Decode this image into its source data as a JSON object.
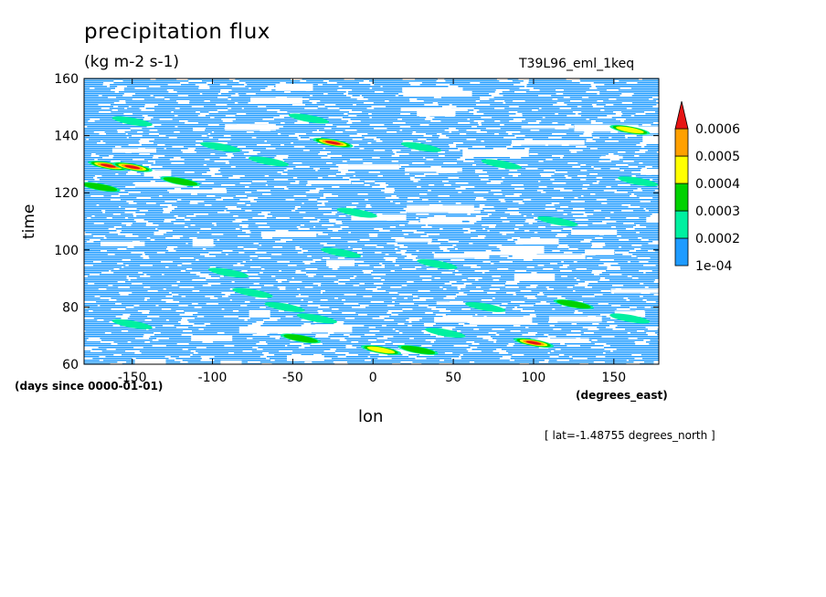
{
  "chart_data": {
    "type": "heatmap",
    "title": "precipitation flux",
    "units": "(kg m-2 s-1)",
    "run_label": "T39L96_eml_1keq",
    "xlabel": "lon",
    "ylabel": "time",
    "x_units": "(degrees_east)",
    "y_units": "(days since 0000-01-01)",
    "annotation": "[ lat=-1.48755 degrees_north ]",
    "xlim": [
      -180,
      178
    ],
    "ylim": [
      60,
      160
    ],
    "x_ticks": [
      -150,
      -100,
      -50,
      0,
      50,
      100,
      150
    ],
    "x_tick_labels": [
      "-150",
      "-100",
      "-50",
      "0",
      "50",
      "100",
      "150"
    ],
    "y_ticks": [
      60,
      80,
      100,
      120,
      140,
      160
    ],
    "y_tick_labels": [
      "60",
      "80",
      "100",
      "120",
      "140",
      "160"
    ],
    "colorbar": {
      "levels": [
        0.0001,
        0.0002,
        0.0003,
        0.0004,
        0.0005,
        0.0006
      ],
      "labels": [
        "1e-04",
        "0.0002",
        "0.0003",
        "0.0004",
        "0.0005",
        "0.0006"
      ],
      "colors": [
        "#1e9bff",
        "#00f0a0",
        "#00d200",
        "#ffff00",
        "#ffa000",
        "#e61414"
      ],
      "extend": "max"
    },
    "events": [
      {
        "lon": -165,
        "time": 129.5,
        "level": 6
      },
      {
        "lon": -150,
        "time": 129,
        "level": 6
      },
      {
        "lon": -25,
        "time": 137.5,
        "level": 6
      },
      {
        "lon": -120,
        "time": 124,
        "level": 3
      },
      {
        "lon": -170,
        "time": 122,
        "level": 3
      },
      {
        "lon": -95,
        "time": 136,
        "level": 2
      },
      {
        "lon": -65,
        "time": 131,
        "level": 2
      },
      {
        "lon": -40,
        "time": 146,
        "level": 2
      },
      {
        "lon": 30,
        "time": 136,
        "level": 2
      },
      {
        "lon": 80,
        "time": 130,
        "level": 2
      },
      {
        "lon": 160,
        "time": 142,
        "level": 4
      },
      {
        "lon": 165,
        "time": 124,
        "level": 2
      },
      {
        "lon": -150,
        "time": 145,
        "level": 2
      },
      {
        "lon": -90,
        "time": 92,
        "level": 2
      },
      {
        "lon": -75,
        "time": 85,
        "level": 2
      },
      {
        "lon": -55,
        "time": 80,
        "level": 2
      },
      {
        "lon": -35,
        "time": 76,
        "level": 2
      },
      {
        "lon": -150,
        "time": 74,
        "level": 2
      },
      {
        "lon": 5,
        "time": 65,
        "level": 4
      },
      {
        "lon": 28,
        "time": 65,
        "level": 3
      },
      {
        "lon": 45,
        "time": 71,
        "level": 2
      },
      {
        "lon": 100,
        "time": 67.5,
        "level": 6
      },
      {
        "lon": 125,
        "time": 81,
        "level": 3
      },
      {
        "lon": 160,
        "time": 76,
        "level": 2
      },
      {
        "lon": 40,
        "time": 95,
        "level": 2
      },
      {
        "lon": 115,
        "time": 110,
        "level": 2
      },
      {
        "lon": -10,
        "time": 113,
        "level": 2
      },
      {
        "lon": -45,
        "time": 69,
        "level": 3
      },
      {
        "lon": -20,
        "time": 99,
        "level": 2
      },
      {
        "lon": 70,
        "time": 80,
        "level": 2
      }
    ]
  }
}
